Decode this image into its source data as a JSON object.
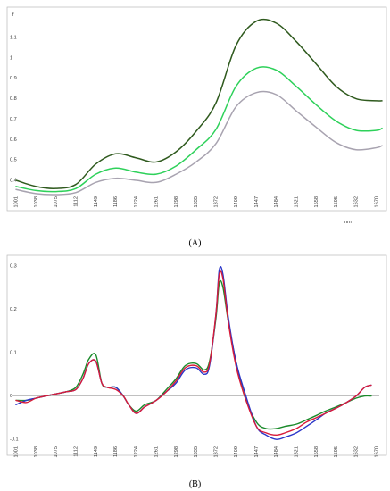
{
  "figure": {
    "label_a": "(A)",
    "label_b": "(B)"
  },
  "chart_data": [
    {
      "type": "line",
      "panel": "(A)",
      "ylabel": "f",
      "xunit": "nm",
      "x_ticks": [
        "1001",
        "1038",
        "1075",
        "1112",
        "1149",
        "1186",
        "1224",
        "1261",
        "1298",
        "1335",
        "1372",
        "1409",
        "1447",
        "1484",
        "1521",
        "1558",
        "1595",
        "1632",
        "1670"
      ],
      "y_ticks": [
        "0.4",
        "0.5",
        "0.6",
        "0.7",
        "0.8",
        "0.9",
        "1",
        "1.1"
      ],
      "xlim": [
        1001,
        1680
      ],
      "ylim": [
        0.33,
        1.24
      ],
      "grid": false,
      "colors": [
        "#2f5a1e",
        "#2ed15a",
        "#a8a3b0"
      ],
      "x": [
        1001,
        1038,
        1075,
        1112,
        1149,
        1186,
        1224,
        1261,
        1298,
        1335,
        1372,
        1409,
        1447,
        1484,
        1521,
        1558,
        1595,
        1632,
        1670,
        1680
      ],
      "series": [
        {
          "values": [
            0.4,
            0.37,
            0.36,
            0.38,
            0.48,
            0.53,
            0.51,
            0.49,
            0.54,
            0.64,
            0.78,
            1.06,
            1.18,
            1.17,
            1.08,
            0.97,
            0.86,
            0.8,
            0.79,
            0.79
          ]
        },
        {
          "values": [
            0.37,
            0.35,
            0.345,
            0.36,
            0.43,
            0.46,
            0.44,
            0.43,
            0.47,
            0.55,
            0.65,
            0.86,
            0.95,
            0.94,
            0.86,
            0.77,
            0.69,
            0.645,
            0.645,
            0.655
          ]
        },
        {
          "values": [
            0.355,
            0.335,
            0.33,
            0.34,
            0.39,
            0.41,
            0.4,
            0.39,
            0.43,
            0.49,
            0.58,
            0.76,
            0.83,
            0.82,
            0.74,
            0.66,
            0.585,
            0.55,
            0.56,
            0.57
          ]
        }
      ]
    },
    {
      "type": "line",
      "panel": "(B)",
      "x_ticks": [
        "1001",
        "1038",
        "1075",
        "1112",
        "1149",
        "1186",
        "1224",
        "1261",
        "1298",
        "1335",
        "1372",
        "1409",
        "1447",
        "1484",
        "1521",
        "1558",
        "1595",
        "1632",
        "1670"
      ],
      "y_ticks": [
        "0.3",
        "0.2",
        "0.1",
        "0",
        "-0.1"
      ],
      "xlim": [
        1001,
        1680
      ],
      "ylim": [
        -0.11,
        0.31
      ],
      "grid": false,
      "baseline": 0,
      "colors": [
        "#1a8a2a",
        "#2a35c8",
        "#d81b3a"
      ],
      "x": [
        1001,
        1020,
        1038,
        1056,
        1075,
        1095,
        1112,
        1125,
        1136,
        1149,
        1160,
        1170,
        1186,
        1200,
        1210,
        1224,
        1240,
        1261,
        1280,
        1298,
        1315,
        1335,
        1350,
        1360,
        1372,
        1378,
        1385,
        1395,
        1409,
        1425,
        1447,
        1465,
        1484,
        1500,
        1521,
        1540,
        1558,
        1575,
        1595,
        1614,
        1632,
        1648,
        1660
      ],
      "series": [
        {
          "values": [
            -0.01,
            -0.01,
            -0.005,
            0.0,
            0.005,
            0.01,
            0.02,
            0.05,
            0.085,
            0.095,
            0.03,
            0.02,
            0.02,
            0.0,
            -0.02,
            -0.035,
            -0.02,
            -0.01,
            0.015,
            0.04,
            0.07,
            0.075,
            0.06,
            0.08,
            0.18,
            0.26,
            0.25,
            0.17,
            0.08,
            0.0,
            -0.06,
            -0.075,
            -0.075,
            -0.07,
            -0.065,
            -0.055,
            -0.045,
            -0.035,
            -0.025,
            -0.015,
            -0.005,
            0.0,
            0.0
          ]
        },
        {
          "values": [
            -0.02,
            -0.01,
            -0.005,
            0.0,
            0.005,
            0.01,
            0.015,
            0.04,
            0.075,
            0.08,
            0.03,
            0.02,
            0.02,
            0.0,
            -0.02,
            -0.04,
            -0.025,
            -0.01,
            0.01,
            0.03,
            0.06,
            0.065,
            0.05,
            0.07,
            0.19,
            0.29,
            0.28,
            0.18,
            0.08,
            0.01,
            -0.07,
            -0.09,
            -0.1,
            -0.095,
            -0.085,
            -0.07,
            -0.055,
            -0.04,
            -0.028,
            -0.015,
            0.0,
            0.02,
            0.025
          ]
        },
        {
          "values": [
            -0.01,
            -0.015,
            -0.005,
            0.0,
            0.005,
            0.01,
            0.015,
            0.04,
            0.075,
            0.08,
            0.03,
            0.02,
            0.015,
            0.0,
            -0.02,
            -0.04,
            -0.025,
            -0.01,
            0.01,
            0.035,
            0.065,
            0.07,
            0.055,
            0.075,
            0.19,
            0.28,
            0.27,
            0.17,
            0.07,
            0.0,
            -0.07,
            -0.085,
            -0.09,
            -0.085,
            -0.075,
            -0.06,
            -0.05,
            -0.04,
            -0.028,
            -0.015,
            0.0,
            0.02,
            0.025
          ]
        }
      ]
    }
  ]
}
